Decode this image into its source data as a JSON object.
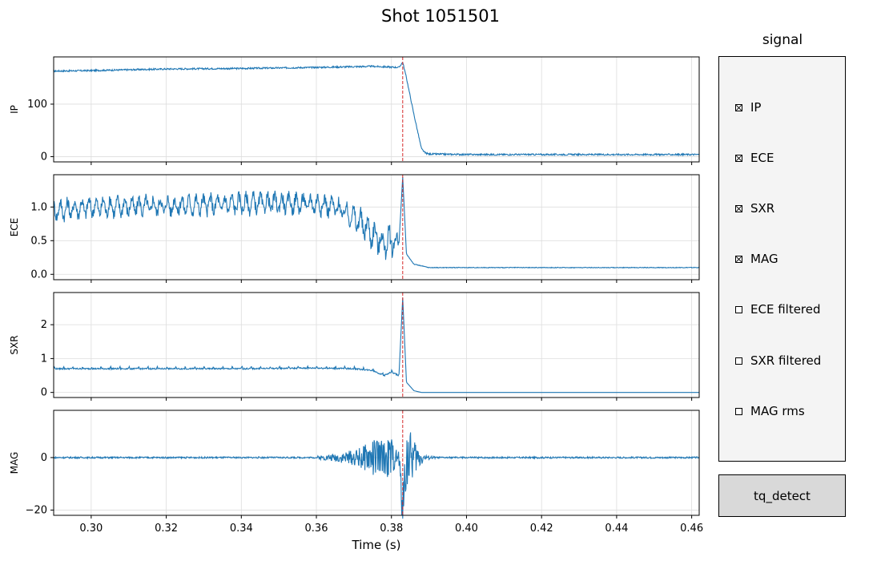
{
  "title": "Shot 1051501",
  "legend": {
    "title": "signal",
    "items": [
      {
        "label": "IP",
        "checked": true
      },
      {
        "label": "ECE",
        "checked": true
      },
      {
        "label": "SXR",
        "checked": true
      },
      {
        "label": "MAG",
        "checked": true
      },
      {
        "label": "ECE filtered",
        "checked": false
      },
      {
        "label": "SXR filtered",
        "checked": false
      },
      {
        "label": "MAG rms",
        "checked": false
      }
    ]
  },
  "button": {
    "label": "tq_detect"
  },
  "chart_data": {
    "type": "line",
    "xlabel": "Time (s)",
    "xlim": [
      0.29,
      0.462
    ],
    "xticks": [
      0.3,
      0.32,
      0.34,
      0.36,
      0.38,
      0.4,
      0.42,
      0.44,
      0.46
    ],
    "xtick_labels": [
      "0.30",
      "0.32",
      "0.34",
      "0.36",
      "0.38",
      "0.40",
      "0.42",
      "0.44",
      "0.46"
    ],
    "line_color": "#1f77b4",
    "marker_color": "#d62728",
    "marker_x": 0.383,
    "grid": true,
    "panels": [
      {
        "ylabel": "IP",
        "ylim": [
          -10,
          190
        ],
        "yticks": [
          0,
          100
        ],
        "ytick_labels": [
          "0",
          "100"
        ],
        "points": [
          [
            0.29,
            163
          ],
          [
            0.3,
            164
          ],
          [
            0.32,
            167
          ],
          [
            0.34,
            168
          ],
          [
            0.36,
            170
          ],
          [
            0.375,
            172
          ],
          [
            0.382,
            170
          ],
          [
            0.383,
            180
          ],
          [
            0.384,
            150
          ],
          [
            0.386,
            80
          ],
          [
            0.388,
            15
          ],
          [
            0.389,
            7
          ],
          [
            0.39,
            5
          ],
          [
            0.4,
            4
          ],
          [
            0.42,
            4
          ],
          [
            0.44,
            4
          ],
          [
            0.462,
            4
          ]
        ]
      },
      {
        "ylabel": "ECE",
        "ylim": [
          -0.08,
          1.48
        ],
        "yticks": [
          0.0,
          0.5,
          1.0
        ],
        "ytick_labels": [
          "0.0",
          "0.5",
          "1.0"
        ],
        "points": [
          [
            0.29,
            0.95
          ],
          [
            0.3,
            1.0
          ],
          [
            0.32,
            1.02
          ],
          [
            0.34,
            1.05
          ],
          [
            0.35,
            1.06
          ],
          [
            0.36,
            1.05
          ],
          [
            0.365,
            1.0
          ],
          [
            0.37,
            0.85
          ],
          [
            0.375,
            0.6
          ],
          [
            0.378,
            0.45
          ],
          [
            0.38,
            0.5
          ],
          [
            0.382,
            0.45
          ],
          [
            0.383,
            1.45
          ],
          [
            0.384,
            0.3
          ],
          [
            0.386,
            0.15
          ],
          [
            0.39,
            0.1
          ],
          [
            0.4,
            0.1
          ],
          [
            0.42,
            0.1
          ],
          [
            0.44,
            0.1
          ],
          [
            0.462,
            0.1
          ]
        ]
      },
      {
        "ylabel": "SXR",
        "ylim": [
          -0.15,
          2.95
        ],
        "yticks": [
          0,
          1,
          2
        ],
        "ytick_labels": [
          "0",
          "1",
          "2"
        ],
        "points": [
          [
            0.29,
            0.7
          ],
          [
            0.3,
            0.7
          ],
          [
            0.32,
            0.7
          ],
          [
            0.34,
            0.7
          ],
          [
            0.36,
            0.72
          ],
          [
            0.37,
            0.7
          ],
          [
            0.375,
            0.65
          ],
          [
            0.378,
            0.5
          ],
          [
            0.38,
            0.6
          ],
          [
            0.382,
            0.5
          ],
          [
            0.383,
            2.8
          ],
          [
            0.384,
            0.3
          ],
          [
            0.386,
            0.05
          ],
          [
            0.388,
            0.0
          ],
          [
            0.4,
            0.0
          ],
          [
            0.42,
            0.0
          ],
          [
            0.44,
            0.0
          ],
          [
            0.462,
            0.0
          ]
        ]
      },
      {
        "ylabel": "MAG",
        "ylim": [
          -22,
          18
        ],
        "yticks": [
          -20,
          0
        ],
        "ytick_labels": [
          "−20",
          "0"
        ],
        "points": [
          [
            0.29,
            0
          ],
          [
            0.3,
            0
          ],
          [
            0.32,
            0
          ],
          [
            0.34,
            0
          ],
          [
            0.36,
            0
          ],
          [
            0.37,
            0
          ],
          [
            0.375,
            0
          ],
          [
            0.382,
            0
          ],
          [
            0.383,
            -20
          ],
          [
            0.384,
            0
          ],
          [
            0.39,
            0
          ],
          [
            0.4,
            0
          ],
          [
            0.42,
            0
          ],
          [
            0.44,
            0
          ],
          [
            0.462,
            0
          ]
        ],
        "envelope": [
          [
            0.36,
            0.6
          ],
          [
            0.365,
            1.5
          ],
          [
            0.37,
            3
          ],
          [
            0.373,
            5
          ],
          [
            0.376,
            8
          ],
          [
            0.378,
            6
          ],
          [
            0.38,
            9
          ],
          [
            0.381,
            3
          ],
          [
            0.382,
            4
          ],
          [
            0.384,
            12
          ],
          [
            0.385,
            10
          ],
          [
            0.387,
            5
          ],
          [
            0.389,
            1
          ],
          [
            0.392,
            0.3
          ]
        ]
      }
    ]
  }
}
